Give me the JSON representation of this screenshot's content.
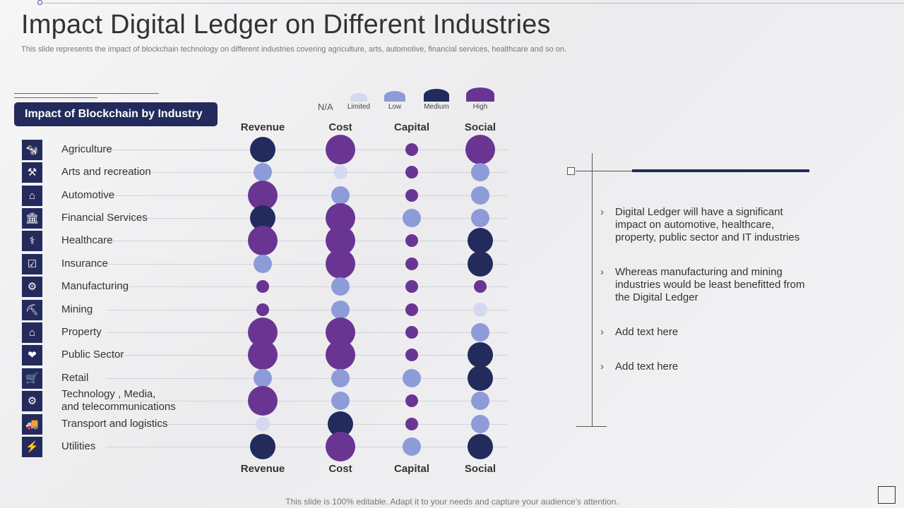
{
  "title": "Impact Digital Ledger on Different Industries",
  "subtitle": "This slide represents the impact of blockchain technology on different industries covering agriculture, arts, automotive, financial services, healthcare and so on.",
  "box_header": "Impact of Blockchain by Industry",
  "legend": {
    "na_label": "N/A",
    "items": [
      {
        "label": "Limited",
        "color": "#d5d8ef"
      },
      {
        "label": "Low",
        "color": "#8d9bd9"
      },
      {
        "label": "Medium",
        "color": "#232b5c"
      },
      {
        "label": "High",
        "color": "#6a3592"
      }
    ]
  },
  "columns": [
    "Revenue",
    "Cost",
    "Capital",
    "Social"
  ],
  "chart_data": {
    "type": "bubble-matrix",
    "levels": [
      "Limited",
      "Low",
      "Medium",
      "High"
    ],
    "rows": [
      {
        "industry": "Agriculture",
        "icon": "cow-icon",
        "values": [
          "Medium",
          "High",
          "High",
          "High"
        ]
      },
      {
        "industry": "Arts and recreation",
        "icon": "arts-icon",
        "values": [
          "Low",
          "Limited",
          "High",
          "Low"
        ]
      },
      {
        "industry": "Automotive",
        "icon": "automotive-icon",
        "values": [
          "High",
          "Low",
          "High",
          "Low"
        ]
      },
      {
        "industry": "Financial Services",
        "icon": "bank-icon",
        "values": [
          "Medium",
          "High",
          "Low",
          "Low"
        ]
      },
      {
        "industry": "Healthcare",
        "icon": "doctor-icon",
        "values": [
          "High",
          "High",
          "High",
          "Medium"
        ]
      },
      {
        "industry": "Insurance",
        "icon": "insurance-icon",
        "values": [
          "Low",
          "High",
          "High",
          "Medium"
        ]
      },
      {
        "industry": "Manufacturing",
        "icon": "factory-icon",
        "values": [
          "High",
          "Low",
          "High",
          "High"
        ]
      },
      {
        "industry": "Mining",
        "icon": "pickaxe-icon",
        "values": [
          "High",
          "Low",
          "High",
          "Limited"
        ]
      },
      {
        "industry": "Property",
        "icon": "property-icon",
        "values": [
          "High",
          "High",
          "High",
          "Low"
        ]
      },
      {
        "industry": "Public Sector",
        "icon": "handshake-icon",
        "values": [
          "High",
          "High",
          "High",
          "Medium"
        ]
      },
      {
        "industry": "Retail",
        "icon": "cart-icon",
        "values": [
          "Low",
          "Low",
          "Low",
          "Medium"
        ]
      },
      {
        "industry": "Technology , Media,\nand telecommunications",
        "icon": "tech-gear-icon",
        "values": [
          "High",
          "Low",
          "High",
          "Low"
        ]
      },
      {
        "industry": "Transport and logistics",
        "icon": "truck-icon",
        "values": [
          "Limited",
          "Medium",
          "High",
          "Low"
        ]
      },
      {
        "industry": "Utilities",
        "icon": "utilities-icon",
        "values": [
          "Medium",
          "High",
          "Low",
          "Medium"
        ]
      }
    ]
  },
  "points": [
    "Digital Ledger  will have a significant impact on automotive, healthcare, property, public sector and IT industries",
    "Whereas manufacturing and mining industries would be least benefitted from the Digital Ledger",
    "Add text here",
    "Add text here"
  ],
  "footer": "This slide is 100% editable. Adapt it to your needs and capture your audience’s attention."
}
